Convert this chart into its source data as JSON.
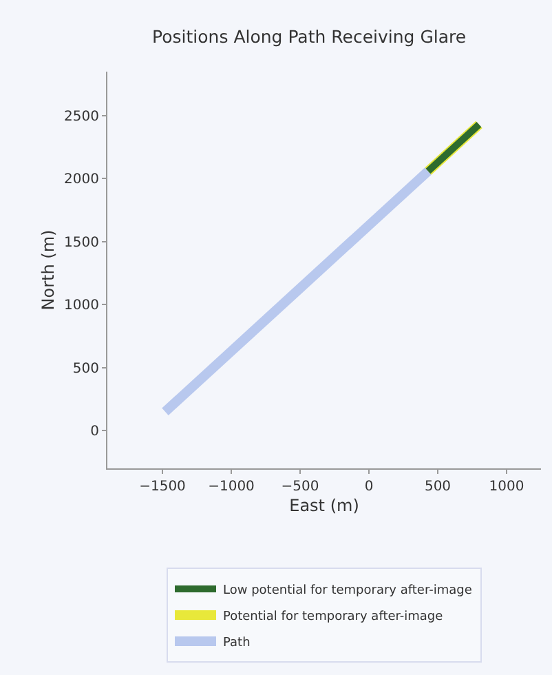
{
  "chart_data": {
    "type": "line",
    "title": "Positions Along Path Receiving Glare",
    "xlabel": "East (m)",
    "ylabel": "North (m)",
    "series": [
      {
        "name": "Low potential for temporary after-image",
        "color": "#2e6b2e",
        "x": [
          430,
          800
        ],
        "values": [
          2060,
          2430
        ]
      },
      {
        "name": "Potential for temporary after-image",
        "color": "#e8e83a",
        "x": [
          430,
          800
        ],
        "values": [
          2060,
          2430
        ]
      },
      {
        "name": "Path",
        "color": "#b8c8ee",
        "x": [
          -1480,
          -500,
          0,
          430
        ],
        "values": [
          150,
          1130,
          1630,
          2060
        ]
      }
    ],
    "xlim": [
      -1900,
      1250
    ],
    "xticks": [
      -1500,
      -1000,
      -500,
      0,
      500,
      1000
    ],
    "ylim": [
      -300,
      2850
    ],
    "yticks": [
      0,
      500,
      1000,
      1500,
      2000,
      2500
    ],
    "grid": false,
    "legend": "bottom",
    "marker": "none",
    "line_style": "solid"
  }
}
